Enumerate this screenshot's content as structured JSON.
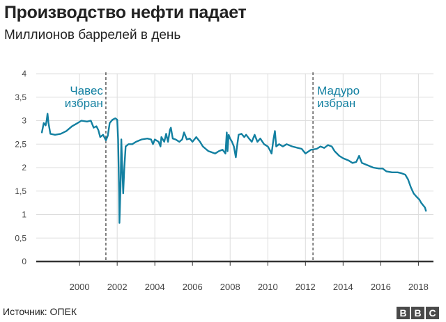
{
  "header": {
    "title": "Производство нефти падает",
    "subtitle": "Миллионов баррелей в день"
  },
  "footer": {
    "source": "Источник: ОПЕК",
    "logo_letters": [
      "B",
      "B",
      "C"
    ]
  },
  "colors": {
    "line": "#1380a1",
    "annotation": "#1380a1",
    "grid": "#dddddd",
    "axis": "#333333"
  },
  "chart_data": {
    "type": "line",
    "title": "Производство нефти падает",
    "subtitle": "Миллионов баррелей в день",
    "xlabel": "",
    "ylabel": "",
    "xlim": [
      1997.7,
      2018.8
    ],
    "ylim": [
      0,
      4
    ],
    "grid": true,
    "x_ticks": [
      2000,
      2002,
      2004,
      2006,
      2008,
      2010,
      2012,
      2014,
      2016,
      2018
    ],
    "x_tick_labels": [
      "2000",
      "2002",
      "2004",
      "2006",
      "2008",
      "2010",
      "2012",
      "2014",
      "2016",
      "2018"
    ],
    "y_ticks": [
      0,
      0.5,
      1,
      1.5,
      2,
      2.5,
      3,
      3.5,
      4
    ],
    "y_tick_labels": [
      "0",
      "0,5",
      "1",
      "1,5",
      "2",
      "2,5",
      "3",
      "3,5",
      "4"
    ],
    "annotations": [
      {
        "x": 2001.4,
        "lines": [
          "Чавес",
          "избран"
        ],
        "align": "right"
      },
      {
        "x": 2012.4,
        "lines": [
          "Мадуро",
          "избран"
        ],
        "align": "left"
      }
    ],
    "series": [
      {
        "points": [
          [
            1998.0,
            2.75
          ],
          [
            1998.1,
            2.95
          ],
          [
            1998.2,
            2.9
          ],
          [
            1998.25,
            3.0
          ],
          [
            1998.3,
            3.15
          ],
          [
            1998.35,
            2.95
          ],
          [
            1998.45,
            2.72
          ],
          [
            1998.7,
            2.7
          ],
          [
            1999.0,
            2.72
          ],
          [
            1999.3,
            2.78
          ],
          [
            1999.6,
            2.88
          ],
          [
            1999.9,
            2.95
          ],
          [
            2000.1,
            3.0
          ],
          [
            2000.4,
            2.98
          ],
          [
            2000.6,
            3.0
          ],
          [
            2000.75,
            2.85
          ],
          [
            2000.9,
            2.88
          ],
          [
            2001.0,
            2.8
          ],
          [
            2001.1,
            2.65
          ],
          [
            2001.25,
            2.7
          ],
          [
            2001.4,
            2.58
          ],
          [
            2001.5,
            2.68
          ],
          [
            2001.6,
            2.95
          ],
          [
            2001.75,
            3.02
          ],
          [
            2001.9,
            3.05
          ],
          [
            2002.0,
            3.02
          ],
          [
            2002.05,
            2.6
          ],
          [
            2002.1,
            1.5
          ],
          [
            2002.12,
            0.82
          ],
          [
            2002.18,
            1.6
          ],
          [
            2002.22,
            2.6
          ],
          [
            2002.26,
            2.1
          ],
          [
            2002.32,
            1.45
          ],
          [
            2002.38,
            2.0
          ],
          [
            2002.45,
            2.45
          ],
          [
            2002.6,
            2.5
          ],
          [
            2002.8,
            2.5
          ],
          [
            2003.0,
            2.55
          ],
          [
            2003.3,
            2.6
          ],
          [
            2003.6,
            2.62
          ],
          [
            2003.8,
            2.6
          ],
          [
            2003.9,
            2.5
          ],
          [
            2004.0,
            2.6
          ],
          [
            2004.2,
            2.55
          ],
          [
            2004.3,
            2.45
          ],
          [
            2004.35,
            2.65
          ],
          [
            2004.5,
            2.55
          ],
          [
            2004.6,
            2.72
          ],
          [
            2004.7,
            2.55
          ],
          [
            2004.8,
            2.8
          ],
          [
            2004.85,
            2.85
          ],
          [
            2004.95,
            2.62
          ],
          [
            2005.1,
            2.6
          ],
          [
            2005.3,
            2.55
          ],
          [
            2005.45,
            2.6
          ],
          [
            2005.55,
            2.75
          ],
          [
            2005.7,
            2.6
          ],
          [
            2005.85,
            2.62
          ],
          [
            2006.0,
            2.55
          ],
          [
            2006.2,
            2.65
          ],
          [
            2006.4,
            2.55
          ],
          [
            2006.55,
            2.45
          ],
          [
            2006.7,
            2.4
          ],
          [
            2006.85,
            2.35
          ],
          [
            2007.0,
            2.33
          ],
          [
            2007.2,
            2.3
          ],
          [
            2007.4,
            2.35
          ],
          [
            2007.6,
            2.38
          ],
          [
            2007.75,
            2.3
          ],
          [
            2007.82,
            2.75
          ],
          [
            2007.86,
            2.35
          ],
          [
            2007.92,
            2.7
          ],
          [
            2008.0,
            2.62
          ],
          [
            2008.1,
            2.55
          ],
          [
            2008.2,
            2.45
          ],
          [
            2008.3,
            2.22
          ],
          [
            2008.35,
            2.4
          ],
          [
            2008.45,
            2.7
          ],
          [
            2008.6,
            2.72
          ],
          [
            2008.75,
            2.65
          ],
          [
            2008.85,
            2.7
          ],
          [
            2009.0,
            2.62
          ],
          [
            2009.15,
            2.55
          ],
          [
            2009.3,
            2.7
          ],
          [
            2009.45,
            2.55
          ],
          [
            2009.6,
            2.62
          ],
          [
            2009.8,
            2.5
          ],
          [
            2010.0,
            2.45
          ],
          [
            2010.1,
            2.38
          ],
          [
            2010.2,
            2.3
          ],
          [
            2010.3,
            2.6
          ],
          [
            2010.38,
            2.78
          ],
          [
            2010.45,
            2.45
          ],
          [
            2010.6,
            2.5
          ],
          [
            2010.8,
            2.45
          ],
          [
            2011.0,
            2.5
          ],
          [
            2011.3,
            2.45
          ],
          [
            2011.6,
            2.42
          ],
          [
            2011.8,
            2.4
          ],
          [
            2012.0,
            2.3
          ],
          [
            2012.3,
            2.38
          ],
          [
            2012.6,
            2.4
          ],
          [
            2012.8,
            2.45
          ],
          [
            2013.0,
            2.42
          ],
          [
            2013.2,
            2.48
          ],
          [
            2013.4,
            2.45
          ],
          [
            2013.55,
            2.35
          ],
          [
            2013.8,
            2.25
          ],
          [
            2014.0,
            2.2
          ],
          [
            2014.3,
            2.15
          ],
          [
            2014.5,
            2.1
          ],
          [
            2014.7,
            2.12
          ],
          [
            2014.85,
            2.25
          ],
          [
            2015.0,
            2.1
          ],
          [
            2015.3,
            2.05
          ],
          [
            2015.6,
            2.0
          ],
          [
            2015.9,
            1.98
          ],
          [
            2016.1,
            1.98
          ],
          [
            2016.3,
            1.92
          ],
          [
            2016.6,
            1.9
          ],
          [
            2016.9,
            1.9
          ],
          [
            2017.1,
            1.88
          ],
          [
            2017.3,
            1.85
          ],
          [
            2017.45,
            1.75
          ],
          [
            2017.6,
            1.58
          ],
          [
            2017.75,
            1.45
          ],
          [
            2017.9,
            1.38
          ],
          [
            2018.05,
            1.32
          ],
          [
            2018.15,
            1.25
          ],
          [
            2018.25,
            1.2
          ],
          [
            2018.35,
            1.15
          ],
          [
            2018.4,
            1.08
          ]
        ]
      }
    ]
  }
}
